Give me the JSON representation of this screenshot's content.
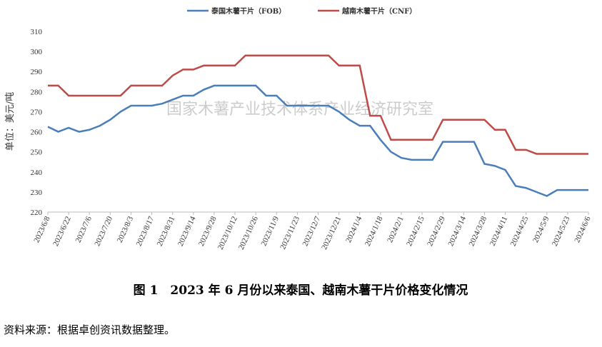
{
  "chart_data": {
    "type": "line",
    "legend_labels": true,
    "y_label": "单位：美元/吨",
    "watermark": "国家木薯产业技术体系产业经济研究室",
    "caption": "图 1　2023 年 6 月份以来泰国、越南木薯干片价格变化情况",
    "source": "资料来源：根据卓创资讯数据整理。",
    "categories": [
      "2023/6/8",
      null,
      "2023/6/22",
      null,
      "2023/7/6",
      null,
      "2023/7/20",
      null,
      "2023/8/3",
      null,
      "2023/8/17",
      null,
      "2023/8/31",
      null,
      "2023/9/14",
      null,
      "2023/9/28",
      null,
      "2023/10/12",
      null,
      "2023/10/26",
      null,
      "2023/11/9",
      null,
      "2023/11/23",
      null,
      "2023/12/7",
      null,
      "2023/12/21",
      null,
      "2024/1/4",
      null,
      "2024/1/18",
      null,
      "2024/2/1",
      null,
      "2024/2/15",
      null,
      "2024/2/29",
      null,
      "2024/3/14",
      null,
      "2024/3/28",
      null,
      "2024/4/11",
      null,
      "2024/4/25",
      null,
      "2024/5/9",
      null,
      "2024/5/23",
      null,
      "2024/6/6"
    ],
    "series": [
      {
        "name": "泰国木薯干片（FOB）",
        "color": "#4a7ebb",
        "values": [
          262.5,
          260,
          262,
          260,
          261,
          263,
          266,
          270,
          273,
          273,
          273,
          274,
          276,
          278,
          278,
          281,
          283,
          283,
          283,
          283,
          283,
          278,
          278,
          273,
          273,
          273,
          273,
          273,
          270,
          266,
          263,
          263,
          256,
          250,
          247,
          246,
          246,
          246,
          255,
          255,
          255,
          255,
          244,
          243,
          241,
          233,
          232,
          230,
          228,
          231,
          231,
          231,
          231
        ]
      },
      {
        "name": "越南木薯干片（CNF）",
        "color": "#be4b48",
        "values": [
          283,
          283,
          278,
          278,
          278,
          278,
          278,
          278,
          283,
          283,
          283,
          283,
          288,
          291,
          291,
          293,
          293,
          293,
          293,
          298,
          298,
          298,
          298,
          298,
          298,
          298,
          298,
          298,
          293,
          293,
          293,
          268,
          268,
          256,
          256,
          256,
          256,
          256,
          266,
          266,
          266,
          266,
          266,
          261,
          261,
          251,
          251,
          249,
          249,
          249,
          249,
          249,
          249
        ]
      }
    ],
    "ylim": [
      220,
      310
    ],
    "yticks": [
      220,
      230,
      240,
      250,
      260,
      270,
      280,
      290,
      300,
      310
    ]
  }
}
